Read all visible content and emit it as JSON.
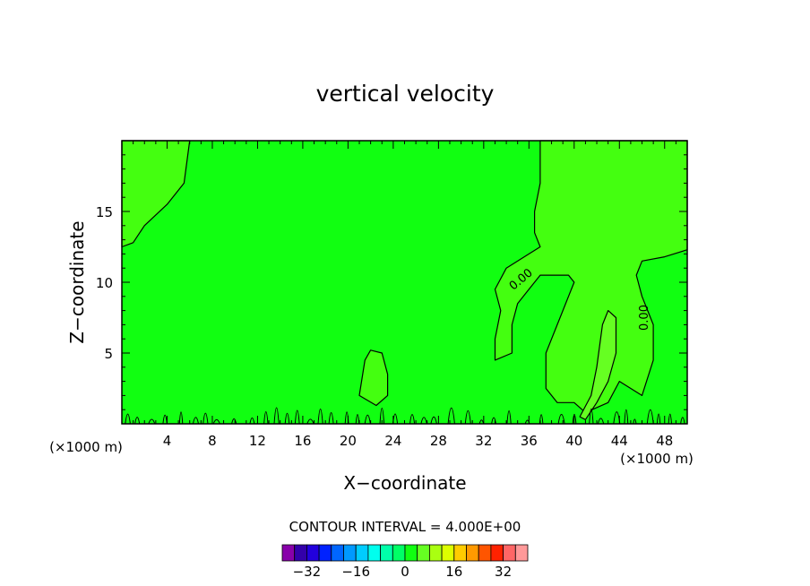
{
  "chart_data": {
    "type": "contour",
    "title": "vertical velocity",
    "xlabel": "X−coordinate",
    "ylabel": "Z−coordinate",
    "x_unit_left": "(×1000 m)",
    "x_unit_right": "(×1000 m)",
    "xlim": [
      0,
      50
    ],
    "ylim": [
      0,
      20
    ],
    "x_ticks": [
      4,
      8,
      12,
      16,
      20,
      24,
      28,
      32,
      36,
      40,
      44,
      48
    ],
    "x_tick_labels": [
      "4",
      "8",
      "12",
      "16",
      "20",
      "24",
      "28",
      "32",
      "36",
      "40",
      "44",
      "48"
    ],
    "y_ticks": [
      5,
      10,
      15
    ],
    "y_tick_labels": [
      "5",
      "10",
      "15"
    ],
    "contour_interval_text": "CONTOUR INTERVAL = 4.000E+00",
    "contour_labels": [
      {
        "text": "0.00",
        "x": 35.5,
        "y": 10.0,
        "rotate": -40
      },
      {
        "text": "0.00",
        "x": 46.5,
        "y": 7.5,
        "rotate": -90
      }
    ],
    "fields": {
      "background_color": "#11ff11",
      "zero_level_color": "#44ff10",
      "positive_color": "#66ff22",
      "regions": [
        {
          "name": "upper-left-zone",
          "level": "zero",
          "points": [
            [
              0,
              20
            ],
            [
              6,
              20
            ],
            [
              5.5,
              17
            ],
            [
              4,
              15.5
            ],
            [
              2,
              14
            ],
            [
              1,
              12.8
            ],
            [
              0,
              12.5
            ]
          ]
        },
        {
          "name": "right-updraft-zone",
          "level": "zero",
          "points": [
            [
              37,
              20
            ],
            [
              50,
              20
            ],
            [
              50,
              12.3
            ],
            [
              48,
              11.8
            ],
            [
              46,
              11.5
            ],
            [
              45.5,
              10.5
            ],
            [
              46,
              9
            ],
            [
              47,
              7
            ],
            [
              47,
              4.5
            ],
            [
              46,
              2
            ],
            [
              44,
              3
            ],
            [
              43,
              1.5
            ],
            [
              41,
              0.8
            ],
            [
              40,
              1.5
            ],
            [
              38.5,
              1.5
            ],
            [
              37.5,
              2.5
            ],
            [
              37.5,
              5
            ],
            [
              39,
              8
            ],
            [
              40,
              10
            ],
            [
              39.5,
              10.5
            ],
            [
              37,
              10.5
            ],
            [
              36,
              9.5
            ],
            [
              35,
              8.5
            ],
            [
              34.5,
              7
            ],
            [
              34.5,
              5
            ],
            [
              33,
              4.5
            ],
            [
              33,
              6
            ],
            [
              33.5,
              8
            ],
            [
              33,
              9.5
            ],
            [
              34,
              11
            ],
            [
              36,
              12
            ],
            [
              37,
              12.5
            ],
            [
              36.5,
              13.5
            ],
            [
              36.5,
              15
            ],
            [
              37,
              17
            ]
          ]
        },
        {
          "name": "mid-updraft-bubble",
          "level": "zero",
          "points": [
            [
              21,
              2
            ],
            [
              21.5,
              4.5
            ],
            [
              22,
              5.2
            ],
            [
              23,
              5
            ],
            [
              23.5,
              3.5
            ],
            [
              23.5,
              2
            ],
            [
              22.5,
              1.3
            ]
          ]
        },
        {
          "name": "positive-core",
          "level": "positive",
          "points": [
            [
              40.5,
              0.5
            ],
            [
              41.5,
              2
            ],
            [
              42,
              4
            ],
            [
              42.5,
              7
            ],
            [
              43,
              8
            ],
            [
              43.7,
              7.5
            ],
            [
              43.7,
              5
            ],
            [
              43,
              3
            ],
            [
              42,
              1.5
            ],
            [
              41,
              0.3
            ]
          ]
        }
      ]
    },
    "colorbar": {
      "levels": [
        -36,
        -32,
        -28,
        -24,
        -20,
        -16,
        -12,
        -8,
        -4,
        0,
        4,
        8,
        12,
        16,
        20,
        24,
        28,
        32,
        36
      ],
      "colors": [
        "#8800aa",
        "#3300aa",
        "#2200dd",
        "#0022ff",
        "#0066ff",
        "#0099ff",
        "#00ccff",
        "#00ffee",
        "#00ffaa",
        "#00ff66",
        "#11ff11",
        "#66ff22",
        "#aaff11",
        "#ddff00",
        "#ffcc00",
        "#ff9900",
        "#ff5500",
        "#ff2200",
        "#ff6666",
        "#ff9999"
      ],
      "tick_values": [
        -32,
        -16,
        0,
        16,
        32
      ],
      "tick_labels": [
        "−32",
        "−16",
        "0",
        "16",
        "32"
      ]
    }
  }
}
